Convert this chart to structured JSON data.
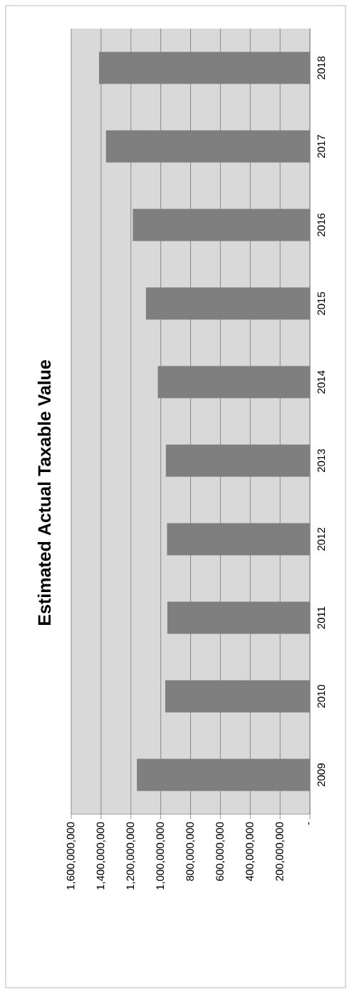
{
  "chart_data": {
    "type": "bar",
    "orientation": "horizontal",
    "title": "Estimated Actual Taxable Value",
    "categories": [
      "2018",
      "2017",
      "2016",
      "2015",
      "2014",
      "2013",
      "2012",
      "2011",
      "2010",
      "2009"
    ],
    "values": [
      1414000000,
      1367000000,
      1187000000,
      1099000000,
      1020000000,
      966000000,
      958000000,
      956000000,
      970000000,
      1160000000
    ],
    "color": "#7f7f7f",
    "xlim": [
      1600000000,
      0
    ],
    "xticks": [
      {
        "value": 0,
        "label": "-"
      },
      {
        "value": 200000000,
        "label": "200,000,000"
      },
      {
        "value": 400000000,
        "label": "400,000,000"
      },
      {
        "value": 600000000,
        "label": "600,000,000"
      },
      {
        "value": 800000000,
        "label": "800,000,000"
      },
      {
        "value": 1000000000,
        "label": "1,000,000,000"
      },
      {
        "value": 1200000000,
        "label": "1,200,000,000"
      },
      {
        "value": 1400000000,
        "label": "1,400,000,000"
      },
      {
        "value": 1600000000,
        "label": "1,600,000,000"
      }
    ],
    "grid": "x"
  }
}
